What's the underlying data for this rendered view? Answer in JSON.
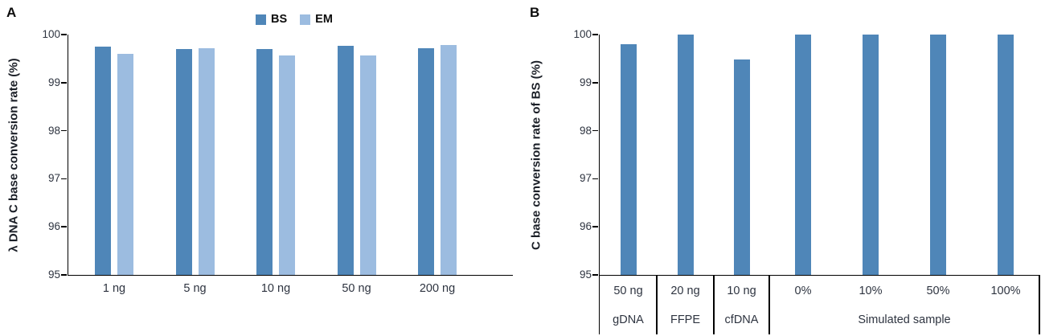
{
  "figure": {
    "panels": [
      {
        "letter": "A"
      },
      {
        "letter": "B"
      }
    ]
  },
  "chart_data": [
    {
      "type": "bar",
      "panel": "A",
      "title": "",
      "xlabel": "",
      "ylabel": "λ DNA C base conversion rate (%)",
      "ylim": [
        95,
        100
      ],
      "yticks": [
        100,
        99,
        98,
        97,
        96,
        95
      ],
      "grid": false,
      "legend_position": "top-center",
      "categories": [
        "1 ng",
        "5 ng",
        "10 ng",
        "50 ng",
        "200 ng"
      ],
      "series": [
        {
          "name": "BS",
          "color": "#4f86b8",
          "values": [
            99.75,
            99.7,
            99.7,
            99.76,
            99.71
          ]
        },
        {
          "name": "EM",
          "color": "#9cbce0",
          "values": [
            99.6,
            99.72,
            99.57,
            99.56,
            99.79
          ]
        }
      ]
    },
    {
      "type": "bar",
      "panel": "B",
      "title": "",
      "xlabel": "",
      "ylabel": "C base conversion rate of BS (%)",
      "ylim": [
        95,
        100
      ],
      "yticks": [
        100,
        99,
        98,
        97,
        96,
        95
      ],
      "grid": false,
      "legend_position": "none",
      "categories": [
        "50 ng",
        "20 ng",
        "10 ng",
        "0%",
        "10%",
        "50%",
        "100%"
      ],
      "category_groups": [
        {
          "label": "gDNA",
          "span": 1
        },
        {
          "label": "FFPE",
          "span": 1
        },
        {
          "label": "cfDNA",
          "span": 1
        },
        {
          "label": "Simulated sample",
          "span": 4
        }
      ],
      "series": [
        {
          "name": "BS",
          "color": "#4f86b8",
          "values": [
            99.8,
            100.0,
            99.48,
            100.0,
            100.0,
            100.0,
            100.0
          ]
        }
      ]
    }
  ]
}
